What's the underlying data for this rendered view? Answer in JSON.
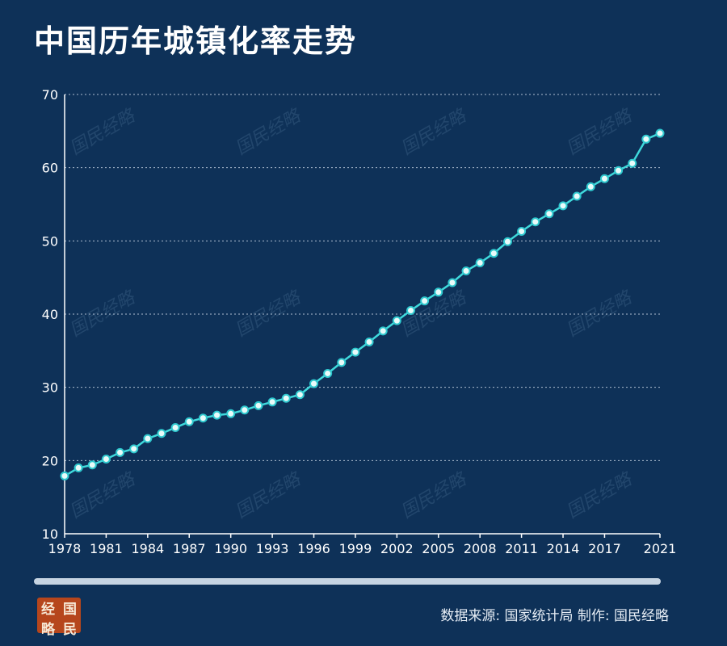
{
  "title": "中国历年城镇化率走势",
  "source_text": "数据来源: 国家统计局  制作: 国民经略",
  "logo": {
    "chars": [
      "经",
      "国",
      "略",
      "民"
    ]
  },
  "watermark_text": "国民经略",
  "colors": {
    "background": "#0e3158",
    "line": "#3fd9dc",
    "point_fill": "#e9fbfa",
    "logo_bg": "#b6461c"
  },
  "chart_data": {
    "type": "line",
    "title": "中国历年城镇化率走势",
    "xlabel": "",
    "ylabel": "",
    "ylim": [
      10,
      70
    ],
    "xlim": [
      1978,
      2021
    ],
    "yticks": [
      10,
      20,
      30,
      40,
      50,
      60,
      70
    ],
    "xticks": [
      1978,
      1981,
      1984,
      1987,
      1990,
      1993,
      1996,
      1999,
      2002,
      2005,
      2008,
      2011,
      2014,
      2017,
      2021
    ],
    "grid": true,
    "series": [
      {
        "x": [
          1978,
          1979,
          1980,
          1981,
          1982,
          1983,
          1984,
          1985,
          1986,
          1987,
          1988,
          1989,
          1990,
          1991,
          1992,
          1993,
          1994,
          1995,
          1996,
          1997,
          1998,
          1999,
          2000,
          2001,
          2002,
          2003,
          2004,
          2005,
          2006,
          2007,
          2008,
          2009,
          2010,
          2011,
          2012,
          2013,
          2014,
          2015,
          2016,
          2017,
          2018,
          2019,
          2020,
          2021
        ],
        "y": [
          17.9,
          19.0,
          19.4,
          20.2,
          21.1,
          21.6,
          23.0,
          23.7,
          24.5,
          25.3,
          25.8,
          26.2,
          26.4,
          26.9,
          27.5,
          28.0,
          28.5,
          29.0,
          30.5,
          31.9,
          33.4,
          34.8,
          36.2,
          37.7,
          39.1,
          40.5,
          41.8,
          43.0,
          44.3,
          45.9,
          47.0,
          48.3,
          49.9,
          51.3,
          52.6,
          53.7,
          54.8,
          56.1,
          57.4,
          58.5,
          59.6,
          60.6,
          63.9,
          64.7
        ]
      }
    ]
  }
}
